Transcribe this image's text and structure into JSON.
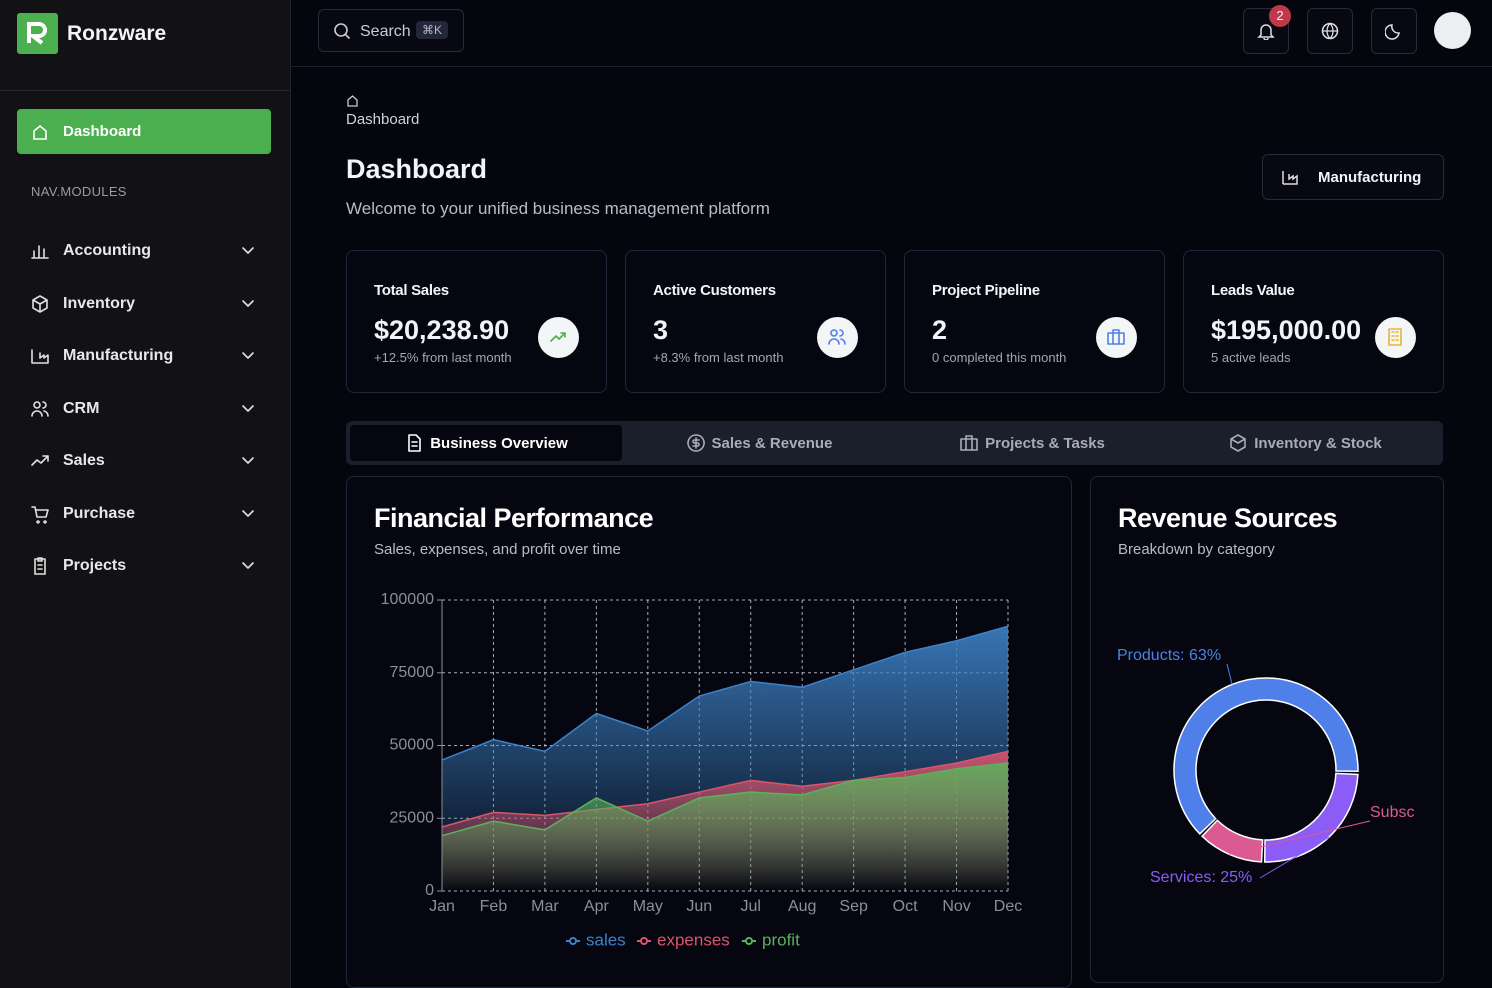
{
  "sidebar": {
    "brand": "Ronzware",
    "active_item": "Dashboard",
    "section_label": "NAV.MODULES",
    "items": [
      "Accounting",
      "Inventory",
      "Manufacturing",
      "CRM",
      "Sales",
      "Purchase",
      "Projects"
    ]
  },
  "topbar": {
    "search_label": "Search",
    "search_shortcut": "⌘K",
    "notification_count": 2
  },
  "breadcrumb": "Dashboard",
  "header": {
    "title": "Dashboard",
    "subtitle": "Welcome to your unified business management platform",
    "button": "Manufacturing"
  },
  "stats": [
    {
      "label": "Total Sales",
      "value": "$20,238.90",
      "note": "+12.5% from last month"
    },
    {
      "label": "Active Customers",
      "value": "3",
      "note": "+8.3% from last month"
    },
    {
      "label": "Project Pipeline",
      "value": "2",
      "note": "0 completed this month"
    },
    {
      "label": "Leads Value",
      "value": "$195,000.00",
      "note": "5 active leads"
    }
  ],
  "tabs": [
    "Business Overview",
    "Sales & Revenue",
    "Projects & Tasks",
    "Inventory & Stock"
  ],
  "active_tab": 0,
  "chart_data": [
    {
      "type": "area",
      "title": "Financial Performance",
      "subtitle": "Sales, expenses, and profit over time",
      "categories": [
        "Jan",
        "Feb",
        "Mar",
        "Apr",
        "May",
        "Jun",
        "Jul",
        "Aug",
        "Sep",
        "Oct",
        "Nov",
        "Dec"
      ],
      "series": [
        {
          "name": "sales",
          "color": "#3d82c8",
          "values": [
            45000,
            52000,
            48000,
            61000,
            55000,
            67000,
            72000,
            70000,
            76000,
            82000,
            86000,
            91000
          ]
        },
        {
          "name": "expenses",
          "color": "#d9546c",
          "values": [
            22000,
            27000,
            26000,
            28000,
            30000,
            34000,
            38000,
            36000,
            38000,
            41000,
            44000,
            48000
          ]
        },
        {
          "name": "profit",
          "color": "#5cb15c",
          "values": [
            19000,
            24000,
            21000,
            32000,
            24000,
            32000,
            34000,
            33000,
            38000,
            39000,
            42000,
            44000
          ]
        }
      ],
      "ylim": [
        0,
        100000
      ],
      "yticks": [
        0,
        25000,
        50000,
        75000,
        100000
      ],
      "grid": true
    },
    {
      "type": "donut",
      "title": "Revenue Sources",
      "subtitle": "Breakdown by category",
      "values": [
        63,
        25,
        12
      ],
      "value_labels": [
        "Products: 63%",
        "Services: 25%",
        "Subsc"
      ],
      "colors": [
        "#4f80ea",
        "#8b5cf6",
        "#dc5a93"
      ]
    }
  ]
}
